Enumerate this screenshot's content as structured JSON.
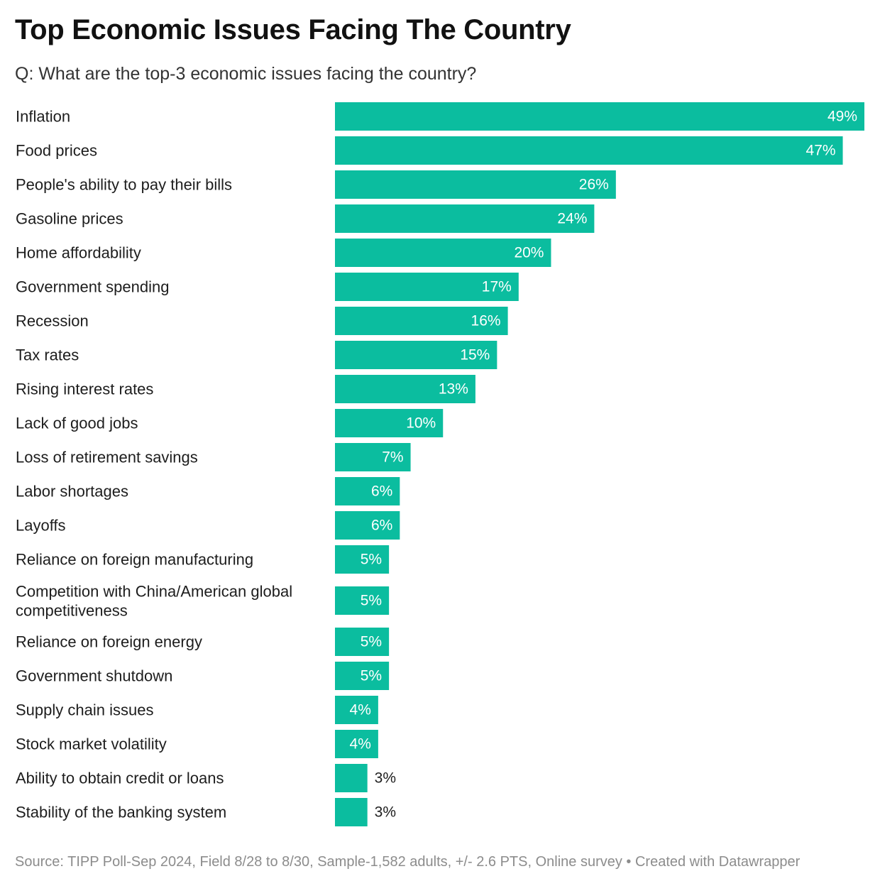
{
  "chart_data": {
    "type": "bar",
    "orientation": "horizontal",
    "title": "Top Economic Issues Facing The Country",
    "subtitle": "Q: What are the top-3 economic issues facing the country?",
    "categories": [
      "Inflation",
      "Food prices",
      "People's ability to pay their bills",
      "Gasoline prices",
      "Home affordability",
      "Government spending",
      "Recession",
      "Tax rates",
      "Rising interest rates",
      "Lack of good jobs",
      "Loss of retirement savings",
      "Labor shortages",
      "Layoffs",
      "Reliance on foreign manufacturing",
      "Competition with China/American global competitiveness",
      "Reliance on foreign energy",
      "Government shutdown",
      "Supply chain issues",
      "Stock market volatility",
      "Ability to obtain credit or loans",
      "Stability of the banking system"
    ],
    "category_label_lines": [
      [
        "Inflation"
      ],
      [
        "Food prices"
      ],
      [
        "People's ability to pay their bills"
      ],
      [
        "Gasoline prices"
      ],
      [
        "Home affordability"
      ],
      [
        "Government spending"
      ],
      [
        "Recession"
      ],
      [
        "Tax rates"
      ],
      [
        "Rising interest rates"
      ],
      [
        "Lack of good jobs"
      ],
      [
        "Loss of retirement savings"
      ],
      [
        "Labor shortages"
      ],
      [
        "Layoffs"
      ],
      [
        "Reliance on foreign manufacturing"
      ],
      [
        "Competition with China/American global",
        "competitiveness"
      ],
      [
        "Reliance on foreign energy"
      ],
      [
        "Government shutdown"
      ],
      [
        "Supply chain issues"
      ],
      [
        "Stock market volatility"
      ],
      [
        "Ability to obtain credit or loans"
      ],
      [
        "Stability of the banking system"
      ]
    ],
    "values": [
      49,
      47,
      26,
      24,
      20,
      17,
      16,
      15,
      13,
      10,
      7,
      6,
      6,
      5,
      5,
      5,
      5,
      4,
      4,
      3,
      3
    ],
    "value_labels": [
      "49%",
      "47%",
      "26%",
      "24%",
      "20%",
      "17%",
      "16%",
      "15%",
      "13%",
      "10%",
      "7%",
      "6%",
      "6%",
      "5%",
      "5%",
      "5%",
      "5%",
      "4%",
      "4%",
      "3%",
      "3%"
    ],
    "unit": "%",
    "xlim": [
      0,
      49
    ],
    "bar_color": "#0bbd9f",
    "grid": false,
    "legend": false,
    "xlabel": "",
    "ylabel": ""
  },
  "footer": {
    "source": "Source: TIPP Poll-Sep 2024, Field 8/28 to 8/30, Sample-1,582 adults, +/- 2.6 PTS, Online survey • Created with Datawrapper"
  }
}
